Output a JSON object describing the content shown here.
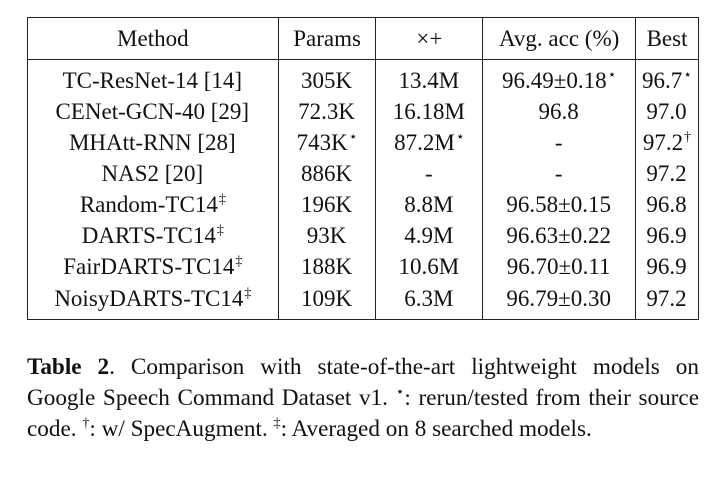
{
  "table": {
    "headers": [
      "Method",
      "Params",
      "×+",
      "Avg. acc (%)",
      "Best"
    ],
    "rows": [
      {
        "method": "TC-ResNet-14 [14]",
        "method_mark": "",
        "params": "305K",
        "params_mark": "",
        "madds": "13.4M",
        "madds_mark": "",
        "avg": "96.49±0.18",
        "avg_mark": "⋆",
        "best": "96.7",
        "best_mark": "⋆"
      },
      {
        "method": "CENet-GCN-40 [29]",
        "method_mark": "",
        "params": "72.3K",
        "params_mark": "",
        "madds": "16.18M",
        "madds_mark": "",
        "avg": "96.8",
        "avg_mark": "",
        "best": "97.0",
        "best_mark": ""
      },
      {
        "method": "MHAtt-RNN [28]",
        "method_mark": "",
        "params": "743K",
        "params_mark": "⋆",
        "madds": "87.2M",
        "madds_mark": "⋆",
        "avg": "-",
        "avg_mark": "",
        "best": "97.2",
        "best_mark": "†"
      },
      {
        "method": "NAS2 [20]",
        "method_mark": "",
        "params": "886K",
        "params_mark": "",
        "madds": "-",
        "madds_mark": "",
        "avg": "-",
        "avg_mark": "",
        "best": "97.2",
        "best_mark": ""
      },
      {
        "method": "Random-TC14",
        "method_mark": "‡",
        "params": "196K",
        "params_mark": "",
        "madds": "8.8M",
        "madds_mark": "",
        "avg": "96.58±0.15",
        "avg_mark": "",
        "best": "96.8",
        "best_mark": ""
      },
      {
        "method": "DARTS-TC14",
        "method_mark": "‡",
        "params": "93K",
        "params_mark": "",
        "madds": "4.9M",
        "madds_mark": "",
        "avg": "96.63±0.22",
        "avg_mark": "",
        "best": "96.9",
        "best_mark": ""
      },
      {
        "method": "FairDARTS-TC14",
        "method_mark": "‡",
        "params": "188K",
        "params_mark": "",
        "madds": "10.6M",
        "madds_mark": "",
        "avg": "96.70±0.11",
        "avg_mark": "",
        "best": "96.9",
        "best_mark": ""
      },
      {
        "method": "NoisyDARTS-TC14",
        "method_mark": "‡",
        "params": "109K",
        "params_mark": "",
        "madds": "6.3M",
        "madds_mark": "",
        "avg": "96.79±0.30",
        "avg_mark": "",
        "best": "97.2",
        "best_mark": ""
      }
    ]
  },
  "caption": {
    "label": "Table 2",
    "text_1": ". Comparison with state-of-the-art lightweight models on Google Speech Command Dataset v1. ",
    "mark_1": "⋆",
    "text_2": ": rerun/tested from their source code. ",
    "mark_2": "†",
    "text_3": ": w/ SpecAugment. ",
    "mark_3": "‡",
    "text_4": ": Averaged on 8 searched models."
  }
}
